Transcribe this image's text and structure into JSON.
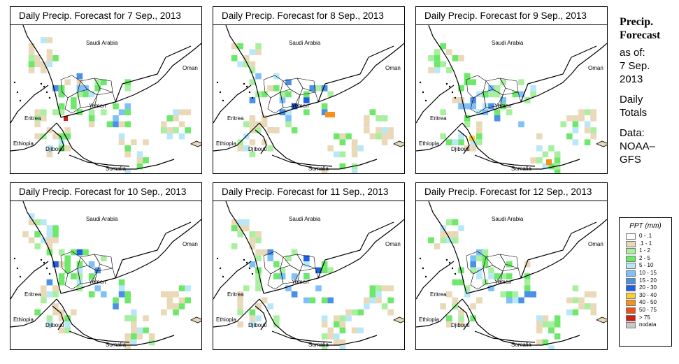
{
  "side_panel": {
    "title_line1": "Precip.",
    "title_line2": "Forecast",
    "asof_line1": "as of:",
    "asof_line2": "7 Sep.",
    "asof_line3": "2013",
    "totals_line1": "Daily",
    "totals_line2": "Totals",
    "data_line1": "Data:",
    "data_line2": "NOAA–",
    "data_line3": "GFS"
  },
  "map_labels": {
    "saudi": "Saudi Arabia",
    "oman": "Oman",
    "yemen": "Yemen",
    "eritrea": "Eritrea",
    "ethiopia": "Ethiopia",
    "djibouti": "Djibouti",
    "somalia": "Somalia"
  },
  "panels": [
    {
      "title": "Daily Precip. Forecast for  7 Sep., 2013"
    },
    {
      "title": "Daily Precip. Forecast for  8 Sep., 2013"
    },
    {
      "title": "Daily Precip. Forecast for  9 Sep., 2013"
    },
    {
      "title": "Daily Precip. Forecast for  10 Sep., 2013"
    },
    {
      "title": "Daily Precip. Forecast for  11 Sep., 2013"
    },
    {
      "title": "Daily Precip. Forecast for  12 Sep., 2013"
    }
  ],
  "legend": {
    "title": "PPT (mm)",
    "items": [
      {
        "label": "0 - .1",
        "color": "#ffffff"
      },
      {
        "label": ".1 - 1",
        "color": "#ead9b8"
      },
      {
        "label": "1 - 2",
        "color": "#a8f0a0"
      },
      {
        "label": "2 - 5",
        "color": "#6ee86a"
      },
      {
        "label": "5 - 10",
        "color": "#b8e8f8"
      },
      {
        "label": "10 - 15",
        "color": "#80c0f8"
      },
      {
        "label": "15 - 20",
        "color": "#4a90e8"
      },
      {
        "label": "20 - 30",
        "color": "#2060e0"
      },
      {
        "label": "30 - 40",
        "color": "#f8d030"
      },
      {
        "label": "40 - 50",
        "color": "#f89020"
      },
      {
        "label": "50 - 75",
        "color": "#f05010"
      },
      {
        "label": "> 75",
        "color": "#d02010"
      },
      {
        "label": "nodata",
        "color": "#c8c8c8"
      }
    ]
  }
}
